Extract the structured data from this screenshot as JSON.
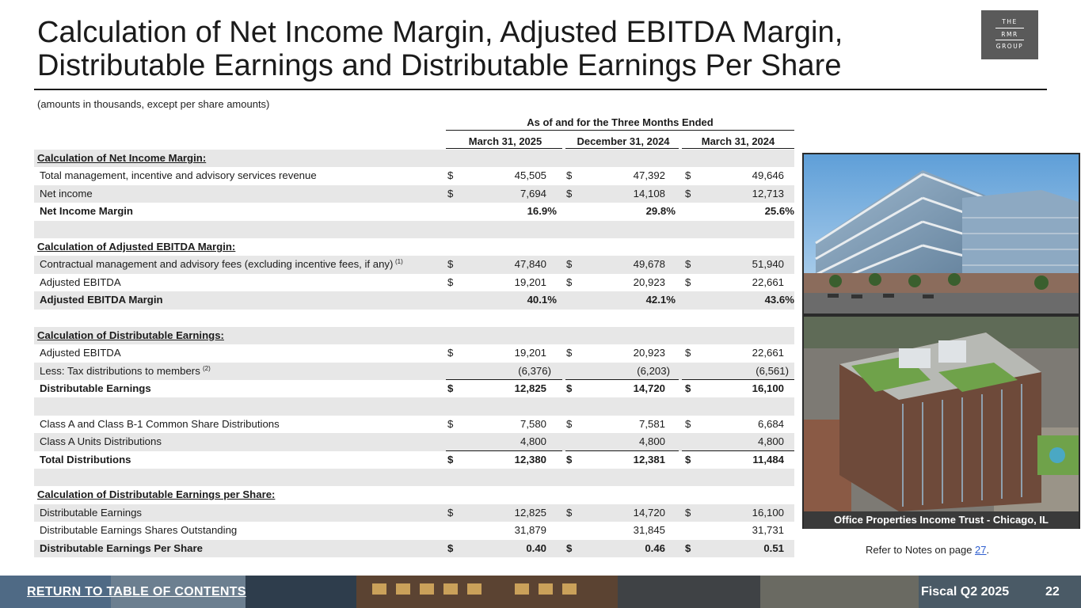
{
  "title": "Calculation of Net Income Margin, Adjusted EBITDA Margin, Distributable Earnings and Distributable Earnings Per Share",
  "logo": {
    "line1": "THE",
    "line2": "RMR",
    "line3": "GROUP"
  },
  "subnote": "(amounts in thousands, except per share amounts)",
  "period_header": "As of and for the Three Months Ended",
  "columns": [
    "March 31, 2025",
    "December 31, 2024",
    "March 31, 2024"
  ],
  "rows": [
    {
      "label": "Calculation of Net Income Margin:",
      "type": "section",
      "shade": true
    },
    {
      "label": "Total management, incentive and advisory services revenue",
      "values": [
        "45,505",
        "47,392",
        "49,646"
      ],
      "dollar": true,
      "shade": false
    },
    {
      "label": "Net income",
      "values": [
        "7,694",
        "14,108",
        "12,713"
      ],
      "dollar": true,
      "shade": true
    },
    {
      "label": "Net Income Margin",
      "values": [
        "16.9%",
        "29.8%",
        "25.6%"
      ],
      "bold": true,
      "pct": true,
      "shade": false
    },
    {
      "label": "",
      "type": "blank",
      "shade": true
    },
    {
      "label": "Calculation of Adjusted EBITDA Margin:",
      "type": "section",
      "shade": false
    },
    {
      "label": "Contractual management and advisory fees (excluding incentive fees, if any)",
      "note": "(1)",
      "values": [
        "47,840",
        "49,678",
        "51,940"
      ],
      "dollar": true,
      "shade": true
    },
    {
      "label": "Adjusted EBITDA",
      "values": [
        "19,201",
        "20,923",
        "22,661"
      ],
      "dollar": true,
      "shade": false
    },
    {
      "label": "Adjusted EBITDA Margin",
      "values": [
        "40.1%",
        "42.1%",
        "43.6%"
      ],
      "bold": true,
      "pct": true,
      "shade": true
    },
    {
      "label": "",
      "type": "blank",
      "shade": false
    },
    {
      "label": "Calculation of Distributable Earnings:",
      "type": "section",
      "shade": true
    },
    {
      "label": "Adjusted EBITDA",
      "values": [
        "19,201",
        "20,923",
        "22,661"
      ],
      "dollar": true,
      "shade": false
    },
    {
      "label": "Less: Tax distributions to members",
      "note": "(2)",
      "values": [
        "(6,376)",
        "(6,203)",
        "(6,561)"
      ],
      "underline": true,
      "paren": true,
      "shade": true
    },
    {
      "label": "Distributable Earnings",
      "values": [
        "12,825",
        "14,720",
        "16,100"
      ],
      "dollar": true,
      "bold": true,
      "double": true,
      "shade": false
    },
    {
      "label": "",
      "type": "blank",
      "shade": true
    },
    {
      "label": "Class A and Class B-1 Common Share Distributions",
      "values": [
        "7,580",
        "7,581",
        "6,684"
      ],
      "dollar": true,
      "shade": false
    },
    {
      "label": "Class A Units Distributions",
      "values": [
        "4,800",
        "4,800",
        "4,800"
      ],
      "underline": true,
      "shade": true
    },
    {
      "label": "Total Distributions",
      "values": [
        "12,380",
        "12,381",
        "11,484"
      ],
      "dollar": true,
      "bold": true,
      "double": true,
      "shade": false
    },
    {
      "label": "",
      "type": "blank",
      "shade": true
    },
    {
      "label": "Calculation of Distributable Earnings per Share:",
      "type": "section",
      "shade": false
    },
    {
      "label": "Distributable Earnings",
      "values": [
        "12,825",
        "14,720",
        "16,100"
      ],
      "dollar": true,
      "shade": true
    },
    {
      "label": "Distributable Earnings Shares Outstanding",
      "values": [
        "31,879",
        "31,845",
        "31,731"
      ],
      "shade": false
    },
    {
      "label": "Distributable Earnings Per Share",
      "values": [
        "0.40",
        "0.46",
        "0.51"
      ],
      "dollar": true,
      "bold": true,
      "shade": true
    }
  ],
  "dollar_sign": "$",
  "photo_caption": "Office Properties Income Trust - Chicago, IL",
  "refer": {
    "prefix": "Refer to Notes on page ",
    "page": "27",
    "suffix": "."
  },
  "footer": {
    "link": "RETURN TO TABLE OF CONTENTS",
    "fiscal": "Fiscal Q2 2025",
    "page": "22"
  },
  "colors": {
    "shade": "#e7e7e7",
    "footer_bg": "#3b3b3b",
    "logo_bg": "#5a5a5a",
    "link": "#2f5fd0"
  }
}
